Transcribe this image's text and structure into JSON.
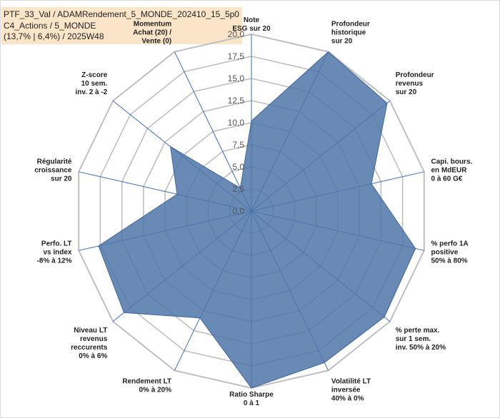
{
  "title_lines": [
    "PTF_33_Val / ADAMRendement_5_MONDE_202410_15_5p0",
    "C4_Actions / 5_MONDE",
    "(13,7% | 6,4%) / 2025W48"
  ],
  "colors": {
    "fill": "#4f75a8",
    "stroke": "#3d65a0",
    "grid": "#bfbfbf",
    "spoke": "#3a6ec2",
    "title_bg": "#fbe5c8"
  },
  "chart_data": {
    "type": "radar",
    "title": "PTF_33_Val / ADAMRendement_5_MONDE_202410_15_5p0 C4_Actions / 5_MONDE (13,7% | 6,4%) / 2025W48",
    "rlim": [
      0,
      20
    ],
    "rticks": [
      "0,0",
      "2,5",
      "5,0",
      "7,5",
      "10,0",
      "12,5",
      "15,0",
      "17,5",
      "20,0"
    ],
    "grid": true,
    "legend": "none",
    "categories": [
      [
        "Note",
        "ESG sur 20"
      ],
      [
        "Profondeur",
        "historique",
        "sur 20"
      ],
      [
        "Profondeur",
        "revenus",
        "sur 20"
      ],
      [
        "Capi. bours.",
        "en MdEUR",
        "0 à 60 G€"
      ],
      [
        "% perfo 1A",
        "positive",
        "50% à 80%"
      ],
      [
        "% perte max.",
        "sur 1 sem.",
        "inv. 50% à 20%"
      ],
      [
        "Volatilité LT",
        "inversée",
        "40% à 0%"
      ],
      [
        "Ratio Sharpe",
        "0 à 1"
      ],
      [
        "Rendement LT",
        "0% à 20%"
      ],
      [
        "Niveau LT",
        "revenus",
        "reccurents",
        "0% à 6%"
      ],
      [
        "Perfo. LT",
        "vs index",
        "-8% à 12%"
      ],
      [
        "Régularité",
        "croissance",
        "sur 20"
      ],
      [
        "Z-score",
        "10 sem.",
        "inv. 2 à -2"
      ],
      [
        "Momentum",
        "Achat (20) /",
        "Vente (0)"
      ]
    ],
    "values": [
      10.2,
      20.0,
      19.6,
      13.9,
      19.0,
      19.2,
      19.0,
      20.0,
      13.4,
      18.4,
      17.7,
      8.6,
      11.7,
      2.9
    ]
  }
}
